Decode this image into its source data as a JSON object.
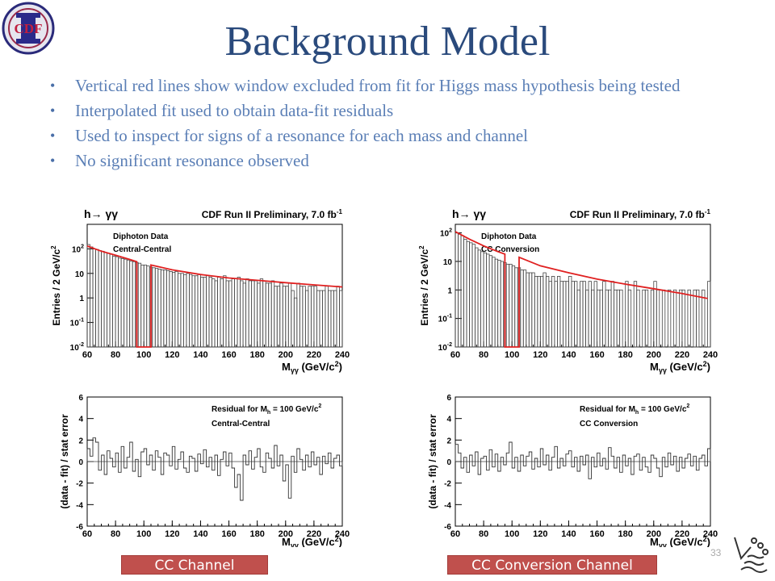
{
  "slide": {
    "title": "Background Model",
    "logo_text": "CDF",
    "page_number": "33",
    "bullets": [
      "Vertical red lines show window excluded from fit for Higgs mass hypothesis being tested",
      "Interpolated fit used to obtain data-fit residuals",
      "Used to inspect for signs of a resonance for each mass and channel",
      "No significant resonance observed"
    ],
    "captions": [
      "CC Channel",
      "CC Conversion Channel"
    ]
  },
  "colors": {
    "title": "#2a4a7c",
    "bullet_text": "#5b7fb6",
    "fit_line": "#e02020",
    "caption_bg": "#c0504d",
    "histogram": "#333333"
  },
  "chart_data": [
    {
      "type": "line",
      "process_label": "h→ γγ",
      "header": "CDF Run II Preliminary, 7.0 fb",
      "header_sup": "-1",
      "legend": [
        "Diphoton Data",
        "Central-Central"
      ],
      "xlabel": "M",
      "xlabel_sub": "γγ",
      "xlabel_unit": " (GeV/c",
      "xlabel_unit_sup": "2",
      "xlabel_end": ")",
      "ylabel": "Entries / 2 GeV/c",
      "ylabel_sup": "2",
      "xlim": [
        60,
        240
      ],
      "ylim_log": [
        -2,
        3
      ],
      "y_scale": "log",
      "xticks": [
        60,
        80,
        100,
        120,
        140,
        160,
        180,
        200,
        220,
        240
      ],
      "yticks": [
        {
          "base": "10",
          "exp": "-2",
          "v": -2
        },
        {
          "base": "10",
          "exp": "-1",
          "v": -1
        },
        {
          "base": "1",
          "exp": "",
          "v": 0
        },
        {
          "base": "10",
          "exp": "",
          "v": 1
        },
        {
          "base": "10",
          "exp": "2",
          "v": 2
        }
      ],
      "excluded_window": [
        95,
        105
      ],
      "fit": {
        "x": [
          60,
          70,
          80,
          90,
          95,
          95,
          97,
          103,
          105,
          105,
          120,
          140,
          160,
          180,
          200,
          220,
          240
        ],
        "y": [
          130,
          80,
          55,
          37,
          30,
          0.01,
          0.01,
          0.01,
          0.01,
          22,
          14,
          9,
          6.5,
          5.2,
          4.2,
          3.4,
          2.8
        ]
      },
      "data": {
        "x_start": 60,
        "bin_width": 2,
        "y": [
          150,
          120,
          100,
          95,
          85,
          80,
          70,
          65,
          60,
          50,
          48,
          42,
          40,
          38,
          35,
          32,
          30,
          28,
          26,
          22,
          22,
          20,
          18,
          17,
          16,
          15,
          14,
          14,
          13,
          12,
          11,
          12,
          10,
          10,
          9,
          10,
          9,
          8,
          8,
          9,
          7,
          7,
          8,
          7,
          6,
          5,
          7,
          6,
          8,
          5,
          5,
          6,
          6,
          7,
          5,
          4,
          6,
          5,
          5,
          5,
          4,
          6,
          5,
          4,
          4,
          5,
          3,
          3,
          4,
          3,
          3,
          4,
          2,
          1,
          4,
          3,
          3,
          2,
          3,
          3,
          3,
          2,
          2,
          2,
          3,
          2,
          2,
          2,
          3,
          2
        ]
      }
    },
    {
      "type": "line",
      "process_label": "h→ γγ",
      "header": "CDF Run II Preliminary, 7.0 fb",
      "header_sup": "-1",
      "legend": [
        "Diphoton Data",
        "CC Conversion"
      ],
      "xlabel": "M",
      "xlabel_sub": "γγ",
      "xlabel_unit": " (GeV/c",
      "xlabel_unit_sup": "2",
      "xlabel_end": ")",
      "ylabel": "Entries / 2 GeV/c",
      "ylabel_sup": "2",
      "xlim": [
        60,
        240
      ],
      "ylim_log": [
        -2,
        2.3
      ],
      "y_scale": "log",
      "xticks": [
        60,
        80,
        100,
        120,
        140,
        160,
        180,
        200,
        220,
        240
      ],
      "yticks": [
        {
          "base": "10",
          "exp": "-2",
          "v": -2
        },
        {
          "base": "10",
          "exp": "-1",
          "v": -1
        },
        {
          "base": "1",
          "exp": "",
          "v": 0
        },
        {
          "base": "10",
          "exp": "",
          "v": 1
        },
        {
          "base": "10",
          "exp": "2",
          "v": 2
        }
      ],
      "excluded_window": [
        95,
        105
      ],
      "fit": {
        "x": [
          60,
          70,
          80,
          90,
          95,
          95,
          97,
          103,
          105,
          105,
          120,
          140,
          160,
          180,
          200,
          220,
          238
        ],
        "y": [
          110,
          60,
          35,
          22,
          18,
          0.01,
          0.01,
          0.01,
          0.01,
          14,
          7,
          4,
          2.4,
          1.6,
          1.1,
          0.75,
          0.5
        ]
      },
      "data": {
        "x_start": 60,
        "bin_width": 2,
        "y": [
          100,
          90,
          80,
          60,
          50,
          45,
          40,
          30,
          25,
          22,
          20,
          18,
          16,
          14,
          12,
          11,
          10,
          9,
          8,
          8,
          7,
          6,
          6,
          5,
          5,
          4,
          4,
          4,
          3,
          3,
          3,
          4,
          3,
          2,
          3,
          2,
          3,
          2,
          2,
          2,
          3,
          2,
          2,
          1,
          2,
          2,
          1,
          2,
          1,
          2,
          1,
          1,
          2,
          1,
          1,
          2,
          1,
          1,
          1,
          0,
          2,
          1,
          0,
          2,
          1,
          0,
          1,
          1,
          0,
          1,
          2,
          1,
          0,
          1,
          0,
          1,
          0,
          1,
          0,
          1,
          1,
          0,
          1,
          0,
          1,
          1,
          0,
          1,
          0,
          2
        ]
      }
    },
    {
      "type": "line",
      "header": "Residual for M",
      "header_sub": "h",
      "header_rest": " = 100 GeV/c",
      "header_sup": "2",
      "legend": [
        "Central-Central"
      ],
      "xlabel": "M",
      "xlabel_sub": "γγ",
      "xlabel_unit": " (GeV/c",
      "xlabel_unit_sup": "2",
      "xlabel_end": ")",
      "ylabel": "(data - fit) / stat error",
      "xlim": [
        60,
        240
      ],
      "ylim": [
        -6,
        6
      ],
      "xticks": [
        60,
        80,
        100,
        120,
        140,
        160,
        180,
        200,
        220,
        240
      ],
      "yticks": [
        -6,
        -4,
        -2,
        0,
        2,
        4,
        6
      ],
      "data": {
        "x_start": 60,
        "bin_width": 2,
        "y": [
          1.2,
          0.5,
          2.2,
          1.8,
          -0.8,
          0.6,
          -1.2,
          1.0,
          0.3,
          -0.5,
          0.8,
          -1.0,
          1.4,
          -0.6,
          0.4,
          1.8,
          -0.9,
          0.2,
          -1.4,
          0.9,
          1.2,
          -0.3,
          0.6,
          -0.8,
          1.0,
          0.4,
          -1.2,
          0.8,
          0.6,
          -0.4,
          1.4,
          -0.7,
          0.2,
          0.9,
          -0.6,
          -1.0,
          0.5,
          0.3,
          -0.9,
          0.7,
          -0.2,
          1.1,
          -0.5,
          0.4,
          -0.8,
          0.6,
          -1.3,
          0.2,
          0.9,
          -0.4,
          0.8,
          -0.6,
          -2.4,
          -1.2,
          -3.6,
          0.6,
          -0.3,
          1.0,
          -0.7,
          0.4,
          1.2,
          -0.5,
          -1.0,
          0.8,
          0.3,
          -0.6,
          1.5,
          -0.4,
          0.6,
          -1.8,
          -0.3,
          -3.4,
          0.5,
          -1.0,
          1.2,
          0.2,
          -0.8,
          0.6,
          -0.5,
          0.9,
          -0.3,
          0.4,
          -1.2,
          0.5,
          -0.2,
          0.8,
          -0.6,
          0.3,
          0.6,
          -0.4
        ]
      }
    },
    {
      "type": "line",
      "header": "Residual for M",
      "header_sub": "h",
      "header_rest": " = 100 GeV/c",
      "header_sup": "2",
      "legend": [
        "CC Conversion"
      ],
      "xlabel": "M",
      "xlabel_sub": "γγ",
      "xlabel_unit": " (GeV/c",
      "xlabel_unit_sup": "2",
      "xlabel_end": ")",
      "ylabel": "(data - fit) / stat error",
      "xlim": [
        60,
        240
      ],
      "ylim": [
        -6,
        6
      ],
      "xticks": [
        60,
        80,
        100,
        120,
        140,
        160,
        180,
        200,
        220,
        240
      ],
      "yticks": [
        -6,
        -4,
        -2,
        0,
        2,
        4,
        6
      ],
      "data": {
        "x_start": 60,
        "bin_width": 2,
        "y": [
          1.6,
          0.8,
          -0.6,
          0.4,
          -1.0,
          0.6,
          -0.4,
          0.9,
          -1.2,
          0.3,
          0.5,
          -0.8,
          1.1,
          -0.5,
          0.7,
          -0.9,
          0.4,
          -0.3,
          0.8,
          1.8,
          -0.6,
          0.4,
          -0.9,
          0.6,
          -0.4,
          0.5,
          0.9,
          -0.7,
          0.3,
          -0.5,
          1.2,
          -0.3,
          0.6,
          -0.8,
          0.4,
          1.4,
          -0.6,
          0.3,
          -0.4,
          0.7,
          1.0,
          -0.5,
          0.4,
          -0.9,
          0.5,
          -0.3,
          0.6,
          -1.6,
          0.4,
          -0.5,
          0.8,
          -0.4,
          0.3,
          -0.7,
          1.3,
          0.5,
          -0.6,
          0.4,
          -1.0,
          0.6,
          -0.4,
          0.3,
          -1.2,
          0.5,
          0.7,
          -0.8,
          0.4,
          -0.5,
          -1.0,
          0.6,
          0.3,
          -0.6,
          -1.4,
          0.4,
          -0.5,
          0.8,
          -0.3,
          0.5,
          -0.9,
          0.4,
          -0.6,
          0.3,
          0.7,
          -0.4,
          0.5,
          -0.8,
          0.3,
          0.6,
          -0.4,
          1.2
        ]
      }
    }
  ]
}
